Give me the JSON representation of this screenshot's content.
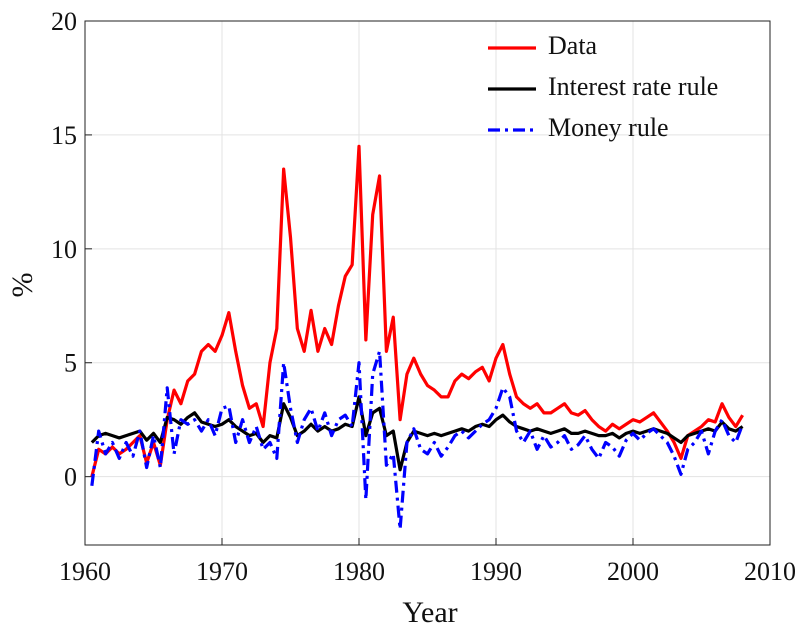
{
  "chart_data": {
    "type": "line",
    "xlabel": "Year",
    "ylabel": "%",
    "xlim": [
      1960,
      2010
    ],
    "xticks": [
      1960,
      1970,
      1980,
      1990,
      2000,
      2010
    ],
    "ylim": [
      -3,
      20
    ],
    "yticks": [
      0,
      5,
      10,
      15,
      20
    ],
    "grid": true,
    "legend": "upper right",
    "x": [
      1960.5,
      1961,
      1961.5,
      1962,
      1962.5,
      1963,
      1963.5,
      1964,
      1964.5,
      1965,
      1965.5,
      1966,
      1966.5,
      1967,
      1967.5,
      1968,
      1968.5,
      1969,
      1969.5,
      1970,
      1970.5,
      1971,
      1971.5,
      1972,
      1972.5,
      1973,
      1973.5,
      1974,
      1974.5,
      1975,
      1975.5,
      1976,
      1976.5,
      1977,
      1977.5,
      1978,
      1978.5,
      1979,
      1979.5,
      1980,
      1980.5,
      1981,
      1981.5,
      1982,
      1982.5,
      1983,
      1983.5,
      1984,
      1984.5,
      1985,
      1985.5,
      1986,
      1986.5,
      1987,
      1987.5,
      1988,
      1988.5,
      1989,
      1989.5,
      1990,
      1990.5,
      1991,
      1991.5,
      1992,
      1992.5,
      1993,
      1993.5,
      1994,
      1994.5,
      1995,
      1995.5,
      1996,
      1996.5,
      1997,
      1997.5,
      1998,
      1998.5,
      1999,
      1999.5,
      2000,
      2000.5,
      2001,
      2001.5,
      2002,
      2002.5,
      2003,
      2003.5,
      2004,
      2004.5,
      2005,
      2005.5,
      2006,
      2006.5,
      2007,
      2007.5,
      2008
    ],
    "series": [
      {
        "name": "Data",
        "color": "#ff0000",
        "dash": "solid",
        "values": [
          0.0,
          1.2,
          1.0,
          1.3,
          1.0,
          1.2,
          1.5,
          1.8,
          0.6,
          1.5,
          0.5,
          2.5,
          3.8,
          3.2,
          4.2,
          4.5,
          5.5,
          5.8,
          5.5,
          6.2,
          7.2,
          5.5,
          4.0,
          3.0,
          3.2,
          2.2,
          5.0,
          6.5,
          13.5,
          10.5,
          6.5,
          5.5,
          7.3,
          5.5,
          6.5,
          5.8,
          7.5,
          8.8,
          9.3,
          14.5,
          6.0,
          11.5,
          13.2,
          5.5,
          7.0,
          2.5,
          4.5,
          5.2,
          4.5,
          4.0,
          3.8,
          3.5,
          3.5,
          4.2,
          4.5,
          4.3,
          4.6,
          4.8,
          4.2,
          5.2,
          5.8,
          4.5,
          3.5,
          3.2,
          3.0,
          3.2,
          2.8,
          2.8,
          3.0,
          3.2,
          2.8,
          2.7,
          2.9,
          2.5,
          2.2,
          2.0,
          2.3,
          2.1,
          2.3,
          2.5,
          2.4,
          2.6,
          2.8,
          2.4,
          2.0,
          1.5,
          0.8,
          1.8,
          2.0,
          2.2,
          2.5,
          2.4,
          3.2,
          2.6,
          2.2,
          2.7
        ]
      },
      {
        "name": "Interest rate rule",
        "color": "#000000",
        "dash": "solid",
        "values": [
          1.5,
          1.8,
          1.9,
          1.8,
          1.7,
          1.8,
          1.9,
          2.0,
          1.6,
          1.9,
          1.5,
          2.6,
          2.5,
          2.3,
          2.6,
          2.8,
          2.4,
          2.3,
          2.2,
          2.3,
          2.5,
          2.2,
          2.0,
          1.8,
          1.9,
          1.5,
          1.8,
          1.7,
          3.2,
          2.6,
          1.8,
          2.0,
          2.3,
          2.0,
          2.2,
          2.0,
          2.1,
          2.3,
          2.2,
          3.5,
          1.8,
          2.8,
          3.0,
          1.8,
          2.0,
          0.3,
          1.5,
          2.0,
          1.9,
          1.8,
          1.9,
          1.8,
          1.9,
          2.0,
          2.1,
          2.0,
          2.2,
          2.3,
          2.2,
          2.5,
          2.7,
          2.4,
          2.2,
          2.1,
          2.0,
          2.1,
          2.0,
          1.9,
          2.0,
          2.1,
          1.9,
          1.9,
          2.0,
          1.9,
          1.8,
          1.8,
          1.9,
          1.7,
          1.9,
          2.0,
          1.9,
          2.0,
          2.1,
          2.0,
          1.9,
          1.7,
          1.5,
          1.8,
          1.9,
          2.0,
          2.1,
          2.0,
          2.4,
          2.1,
          2.0,
          2.2
        ]
      },
      {
        "name": "Money rule",
        "color": "#0000ff",
        "dash": "dashdot",
        "values": [
          -0.4,
          2.0,
          1.0,
          1.5,
          0.8,
          1.5,
          0.9,
          2.0,
          0.4,
          1.8,
          0.4,
          3.9,
          1.0,
          2.5,
          2.3,
          2.5,
          2.0,
          2.5,
          1.8,
          3.0,
          3.1,
          1.5,
          2.5,
          1.5,
          2.2,
          1.2,
          1.5,
          0.8,
          5.0,
          3.0,
          1.5,
          2.5,
          3.0,
          2.0,
          2.8,
          1.8,
          2.5,
          2.7,
          2.2,
          5.0,
          -1.0,
          4.5,
          5.5,
          0.5,
          1.0,
          -2.3,
          1.5,
          2.1,
          1.2,
          1.0,
          1.5,
          0.9,
          1.3,
          1.8,
          2.0,
          1.7,
          2.0,
          2.3,
          2.5,
          3.0,
          3.9,
          3.5,
          2.0,
          1.5,
          2.0,
          1.2,
          1.8,
          1.3,
          1.5,
          1.8,
          1.2,
          1.4,
          1.8,
          1.2,
          0.8,
          1.5,
          1.3,
          0.9,
          1.6,
          1.9,
          1.6,
          1.9,
          2.1,
          1.8,
          1.5,
          0.9,
          0.1,
          1.2,
          1.5,
          2.0,
          1.0,
          2.0,
          2.5,
          1.8,
          1.5,
          2.3
        ]
      }
    ]
  }
}
